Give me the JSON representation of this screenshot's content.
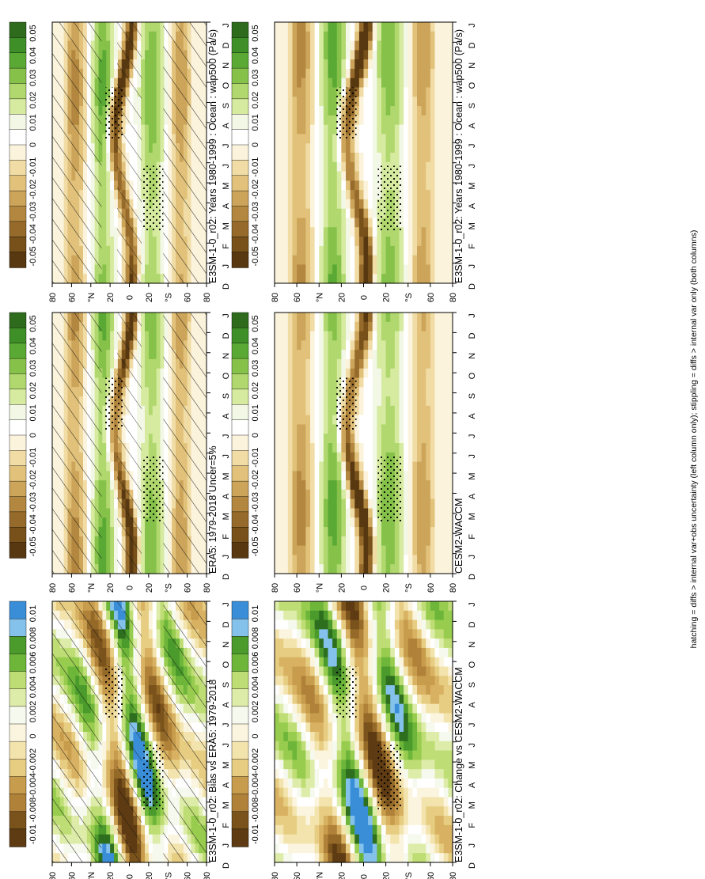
{
  "footer": "hatching = diffs > internal var+obs uncertainty (left column only); stippling = diffs > internal var only (both columns)",
  "colors": {
    "diverging": [
      "#3a8ed8",
      "#84c2ec",
      "#2d6e1f",
      "#4a9a2c",
      "#6db63a",
      "#97cc4f",
      "#bedd74",
      "#ddeca8",
      "#f6f9ee",
      "#ffffff",
      "#fbf5df",
      "#f3e4ae",
      "#e7cd82",
      "#d8b262",
      "#c79c4c",
      "#b08139",
      "#956a29",
      "#7a521b",
      "#5e3b12"
    ],
    "base": [
      "#2e6b1c",
      "#3e8f27",
      "#5aa934",
      "#86c24a",
      "#b0d86e",
      "#d6eaa0",
      "#f3f8e6",
      "#ffffff",
      "#fbf3dc",
      "#f0dca4",
      "#e2c27a",
      "#cca45a",
      "#b3873f",
      "#966a2a",
      "#77501a",
      "#573810"
    ]
  },
  "chart_data": [
    {
      "type": "heatmap",
      "title": "E3SM-1-0_r02: Years 1980-1999 : Ocean : wap500 (Pa/s)",
      "x": [
        "D",
        "J",
        "F",
        "M",
        "A",
        "M",
        "J",
        "J",
        "A",
        "S",
        "O",
        "N",
        "D",
        "J"
      ],
      "y_ticks": [
        "80",
        "60",
        "°N",
        "20",
        "0",
        "20",
        "°S",
        "60",
        "80"
      ],
      "colorbar": [
        "0.05",
        "0.04",
        "0.03",
        "0.02",
        "0.01",
        "0",
        "-0.01",
        "-0.02",
        "-0.03",
        "-0.04",
        "-0.05"
      ],
      "hatching": true
    },
    {
      "type": "heatmap",
      "title": "E3SM-1-0_r02: Years 1980-1999 : Ocean : wap500 (Pa/s)",
      "x": [
        "D",
        "J",
        "F",
        "M",
        "A",
        "M",
        "J",
        "J",
        "A",
        "S",
        "O",
        "N",
        "D",
        "J"
      ],
      "y_ticks": [
        "80",
        "60",
        "°N",
        "20",
        "0",
        "20",
        "°S",
        "60",
        "80"
      ],
      "colorbar": [
        "0.05",
        "0.04",
        "0.03",
        "0.02",
        "0.01",
        "0",
        "-0.01",
        "-0.02",
        "-0.03",
        "-0.04",
        "-0.05"
      ],
      "hatching": false
    },
    {
      "type": "heatmap",
      "title": "ERA5: 1979-2018 Uncer=5%",
      "x": [
        "D",
        "J",
        "F",
        "M",
        "A",
        "M",
        "J",
        "J",
        "A",
        "S",
        "O",
        "N",
        "D",
        "J"
      ],
      "y_ticks": [
        "80",
        "60",
        "°N",
        "20",
        "0",
        "20",
        "°S",
        "60",
        "80"
      ],
      "colorbar": [
        "0.05",
        "0.04",
        "0.03",
        "0.02",
        "0.01",
        "0",
        "-0.01",
        "-0.02",
        "-0.03",
        "-0.04",
        "-0.05"
      ],
      "hatching": true
    },
    {
      "type": "heatmap",
      "title": "CESM2-WACCM",
      "x": [
        "D",
        "J",
        "F",
        "M",
        "A",
        "M",
        "J",
        "J",
        "A",
        "S",
        "O",
        "N",
        "D",
        "J"
      ],
      "y_ticks": [
        "80",
        "60",
        "°N",
        "20",
        "0",
        "20",
        "°S",
        "60",
        "80"
      ],
      "colorbar": [
        "0.05",
        "0.04",
        "0.03",
        "0.02",
        "0.01",
        "0",
        "-0.01",
        "-0.02",
        "-0.03",
        "-0.04",
        "-0.05"
      ],
      "hatching": false
    },
    {
      "type": "heatmap",
      "title": "E3SM-1-0_r02: Bias vs ERA5: 1979-2018",
      "x": [
        "D",
        "J",
        "F",
        "M",
        "A",
        "M",
        "J",
        "J",
        "A",
        "S",
        "O",
        "N",
        "D",
        "J"
      ],
      "y_ticks": [
        "80",
        "60",
        "°N",
        "20",
        "0",
        "20",
        "°S",
        "60",
        "80"
      ],
      "colorbar": [
        "0.01",
        "0.008",
        "0.006",
        "0.004",
        "0.002",
        "0",
        "-0.002",
        "-0.004",
        "-0.008",
        "-0.01"
      ],
      "hatching": true
    },
    {
      "type": "heatmap",
      "title": "E3SM-1-0_r02: Change vs CESM2-WACCM",
      "x": [
        "D",
        "J",
        "F",
        "M",
        "A",
        "M",
        "J",
        "J",
        "A",
        "S",
        "O",
        "N",
        "D",
        "J"
      ],
      "y_ticks": [
        "80",
        "60",
        "°N",
        "20",
        "0",
        "20",
        "°S",
        "60",
        "80"
      ],
      "colorbar": [
        "0.01",
        "0.008",
        "0.006",
        "0.004",
        "0.002",
        "0",
        "-0.002",
        "-0.004",
        "-0.008",
        "-0.01"
      ],
      "hatching": false
    }
  ]
}
